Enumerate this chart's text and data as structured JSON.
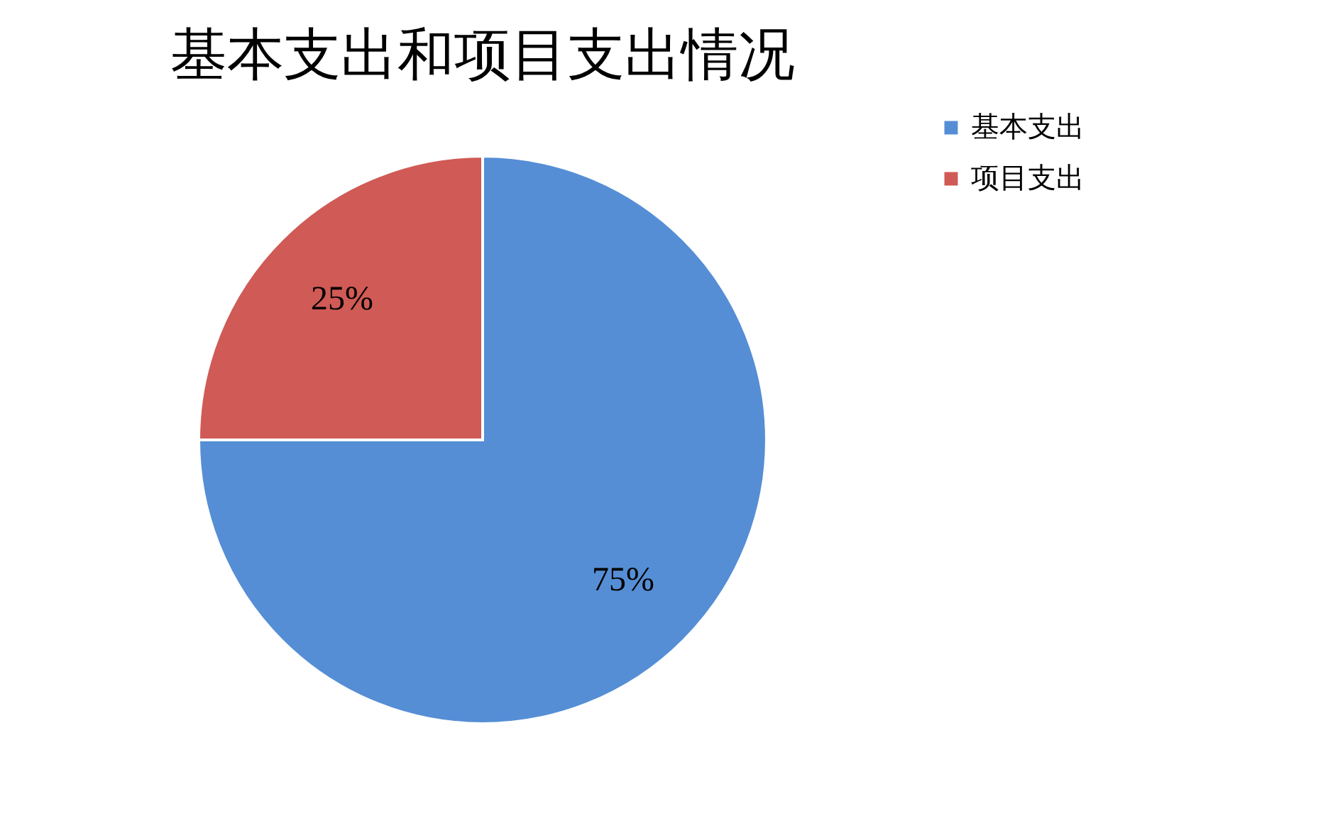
{
  "chart_data": {
    "type": "pie",
    "title": "基本支出和项目支出情况",
    "categories": [
      "基本支出",
      "项目支出"
    ],
    "values": [
      75,
      25
    ],
    "colors": [
      "#558ed5",
      "#d05a55"
    ],
    "value_labels": [
      "75%",
      "25%"
    ],
    "legend": "right"
  }
}
